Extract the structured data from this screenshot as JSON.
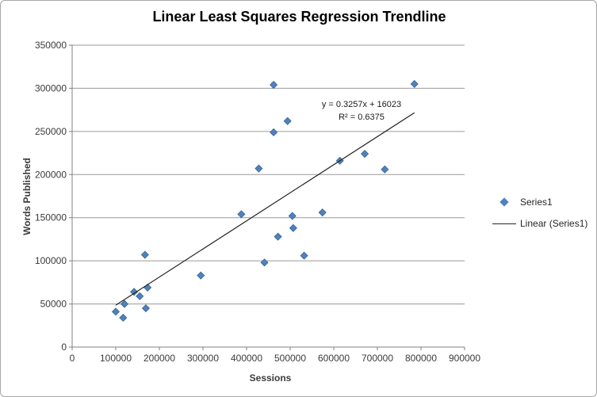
{
  "chart_data": {
    "type": "scatter",
    "title": "Linear Least Squares Regression Trendline",
    "xlabel": "Sessions",
    "ylabel": "Words Published",
    "xlim": [
      0,
      900000
    ],
    "ylim": [
      0,
      350000
    ],
    "x_ticks": [
      0,
      100000,
      200000,
      300000,
      400000,
      500000,
      600000,
      700000,
      800000,
      900000
    ],
    "y_ticks": [
      0,
      50000,
      100000,
      150000,
      200000,
      250000,
      300000,
      350000
    ],
    "grid": "horizontal-only",
    "annotation": {
      "equation": "y = 0.3257x + 16023",
      "r_squared": "R² = 0.6375"
    },
    "legend": {
      "position": "right",
      "entries": [
        {
          "label": "Series1",
          "marker": "diamond",
          "color": "#4f81bd"
        },
        {
          "label": "Linear (Series1)",
          "marker": "line",
          "color": "#262626"
        }
      ]
    },
    "series": [
      {
        "name": "Series1",
        "kind": "scatter",
        "marker": "diamond",
        "color": "#4f81bd",
        "edge_color": "#3a6595",
        "points": [
          [
            100000,
            41000
          ],
          [
            117000,
            34000
          ],
          [
            120000,
            50000
          ],
          [
            142000,
            64000
          ],
          [
            155000,
            59000
          ],
          [
            169000,
            45000
          ],
          [
            173000,
            69000
          ],
          [
            167000,
            107000
          ],
          [
            295000,
            83000
          ],
          [
            388000,
            154000
          ],
          [
            428000,
            207000
          ],
          [
            441000,
            98000
          ],
          [
            462000,
            304000
          ],
          [
            462000,
            249000
          ],
          [
            472000,
            128000
          ],
          [
            494000,
            262000
          ],
          [
            505000,
            152000
          ],
          [
            507000,
            138000
          ],
          [
            532000,
            106000
          ],
          [
            574000,
            156000
          ],
          [
            614000,
            216000
          ],
          [
            671000,
            224000
          ],
          [
            717000,
            206000
          ],
          [
            785000,
            305000
          ]
        ]
      },
      {
        "name": "Linear (Series1)",
        "kind": "trendline",
        "color": "#262626",
        "slope": 0.3257,
        "intercept": 16023,
        "x_range": [
          100000,
          785000
        ]
      }
    ],
    "colors": {
      "gridline": "#9a9a9a",
      "axis": "#808080",
      "tick_text": "#3b3b3b",
      "title_text": "#000000",
      "marker_fill": "#4f81bd",
      "marker_edge": "#3a6595",
      "trendline": "#262626",
      "frame_border": "#a8a8a8",
      "background": "#ffffff"
    }
  }
}
